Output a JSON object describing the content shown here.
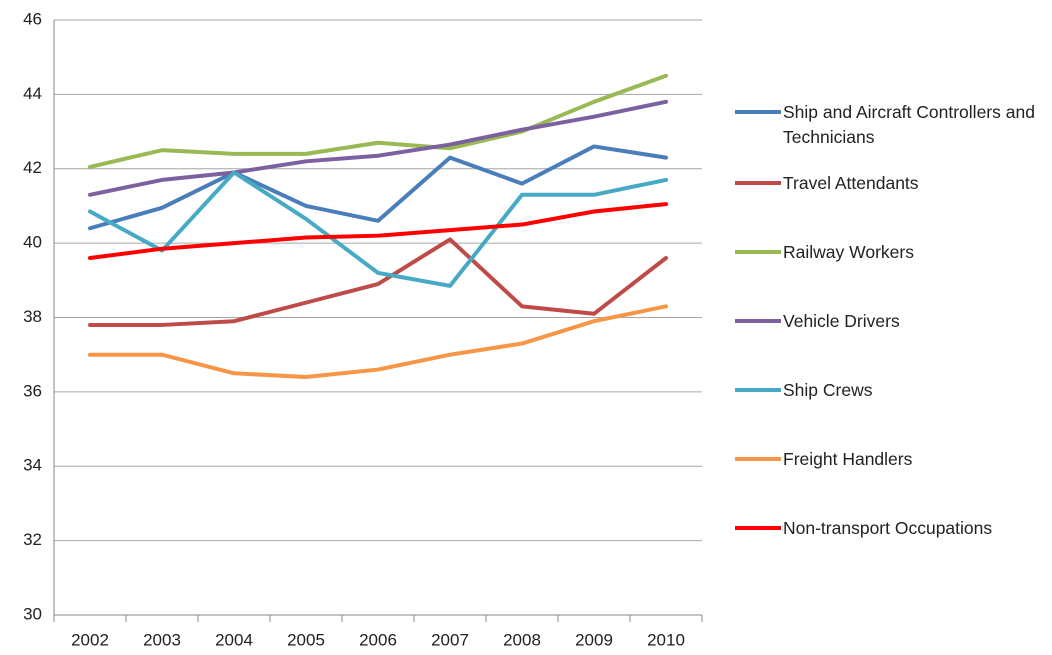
{
  "chart_data": {
    "type": "line",
    "categories": [
      "2002",
      "2003",
      "2004",
      "2005",
      "2006",
      "2007",
      "2008",
      "2009",
      "2010"
    ],
    "series": [
      {
        "name": "Ship and Aircraft Controllers and Technicians",
        "color": "#4a7ebb",
        "values": [
          40.4,
          40.95,
          41.9,
          41.0,
          40.6,
          42.3,
          41.6,
          42.6,
          42.3
        ]
      },
      {
        "name": "Travel Attendants",
        "color": "#be4b48",
        "values": [
          37.8,
          37.8,
          37.9,
          38.4,
          38.9,
          40.1,
          38.3,
          38.1,
          39.6
        ]
      },
      {
        "name": "Railway Workers",
        "color": "#98b954",
        "values": [
          42.05,
          42.5,
          42.4,
          42.4,
          42.7,
          42.55,
          43.0,
          43.8,
          44.5
        ]
      },
      {
        "name": "Vehicle Drivers",
        "color": "#7d60a0",
        "values": [
          41.3,
          41.7,
          41.9,
          42.2,
          42.35,
          42.65,
          43.05,
          43.4,
          43.8
        ]
      },
      {
        "name": "Ship Crews",
        "color": "#46aac5",
        "values": [
          40.85,
          39.8,
          41.9,
          40.65,
          39.2,
          38.85,
          41.3,
          41.3,
          41.7
        ]
      },
      {
        "name": "Freight Handlers",
        "color": "#f79646",
        "values": [
          37.0,
          37.0,
          36.5,
          36.4,
          36.6,
          37.0,
          37.3,
          37.9,
          38.3
        ]
      },
      {
        "name": "Non-transport Occupations",
        "color": "#ff0000",
        "values": [
          39.6,
          39.85,
          40.0,
          40.15,
          40.2,
          40.35,
          40.5,
          40.85,
          41.05
        ]
      }
    ],
    "ylim": [
      30,
      46
    ],
    "yticks": [
      30,
      32,
      34,
      36,
      38,
      40,
      42,
      44,
      46
    ],
    "grid": true,
    "legend": "right"
  }
}
